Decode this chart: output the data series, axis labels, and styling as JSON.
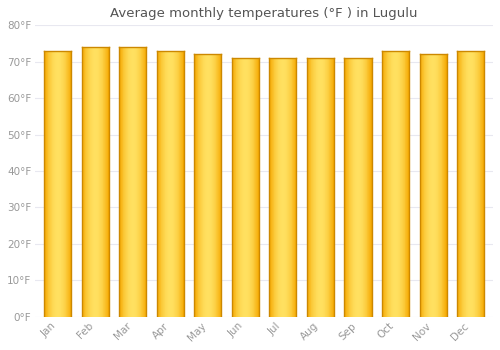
{
  "title": "Average monthly temperatures (°F ) in Lugulu",
  "months": [
    "Jan",
    "Feb",
    "Mar",
    "Apr",
    "May",
    "Jun",
    "Jul",
    "Aug",
    "Sep",
    "Oct",
    "Nov",
    "Dec"
  ],
  "values": [
    73,
    74,
    74,
    73,
    72,
    71,
    71,
    71,
    71,
    73,
    72,
    73
  ],
  "bar_color_center": "#FFD84D",
  "bar_color_edge": "#F5A800",
  "bar_outline_color": "#CC8800",
  "background_color": "#FFFFFF",
  "plot_bg_color": "#F8F8FF",
  "grid_color": "#E8E8F0",
  "text_color": "#999999",
  "title_color": "#555555",
  "ylim": [
    0,
    80
  ],
  "yticks": [
    0,
    10,
    20,
    30,
    40,
    50,
    60,
    70,
    80
  ],
  "ytick_labels": [
    "0°F",
    "10°F",
    "20°F",
    "30°F",
    "40°F",
    "50°F",
    "60°F",
    "70°F",
    "80°F"
  ]
}
